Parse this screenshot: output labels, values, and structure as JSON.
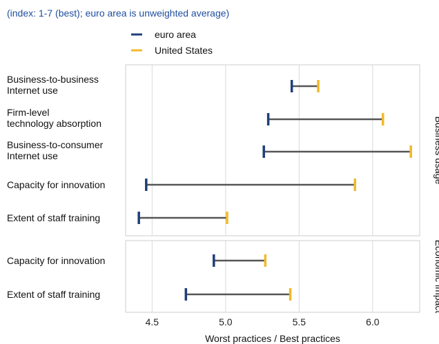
{
  "chart_data": {
    "type": "dumbbell",
    "subtitle": "(index: 1-7 (best); euro area is unweighted average)",
    "xlabel": "Worst practices / Best practices",
    "xlim": [
      4.32,
      6.32
    ],
    "x_ticks": [
      4.5,
      5.0,
      5.5,
      6.0
    ],
    "x_tick_labels": [
      "4.5",
      "5.0",
      "5.5",
      "6.0"
    ],
    "legend": [
      {
        "name": "euro area",
        "color": "#1f3f7a"
      },
      {
        "name": "United States",
        "color": "#f2b928"
      }
    ],
    "panels": [
      {
        "strip_label": "Business usage",
        "rows": [
          {
            "label_lines": [
              "Business-to-business",
              "Internet use"
            ],
            "euro_area": 5.45,
            "united_states": 5.63
          },
          {
            "label_lines": [
              "Firm-level",
              "technology absorption"
            ],
            "euro_area": 5.29,
            "united_states": 6.07
          },
          {
            "label_lines": [
              "Business-to-consumer",
              "Internet use"
            ],
            "euro_area": 5.26,
            "united_states": 6.26
          },
          {
            "label_lines": [
              "Capacity for innovation"
            ],
            "euro_area": 4.46,
            "united_states": 5.88
          },
          {
            "label_lines": [
              "Extent of staff training"
            ],
            "euro_area": 4.41,
            "united_states": 5.01
          }
        ]
      },
      {
        "strip_label": "Economic impact",
        "rows": [
          {
            "label_lines": [
              "Capacity for innovation"
            ],
            "euro_area": 4.92,
            "united_states": 5.27
          },
          {
            "label_lines": [
              "Extent of staff training"
            ],
            "euro_area": 4.73,
            "united_states": 5.44
          }
        ]
      }
    ],
    "colors": {
      "connector": "#555555",
      "grid": "#d9d9d9",
      "panel_border": "#cccccc",
      "strip_bg": "#ffffff"
    }
  }
}
